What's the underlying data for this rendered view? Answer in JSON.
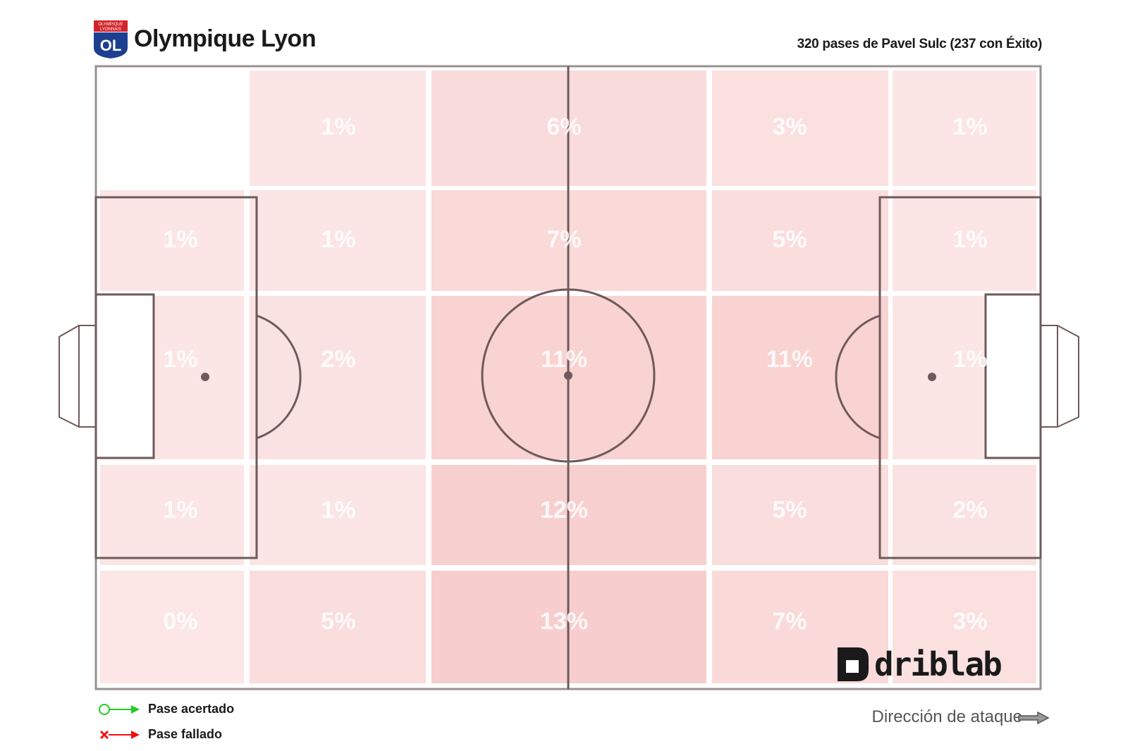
{
  "header": {
    "team_name": "Olympique Lyon",
    "subtitle": "320 pases de Pavel Sulc (237 con Éxito)",
    "badge_text_top": "OLYMPIQUE",
    "badge_text_bottom": "LYONNAIS",
    "badge_letters": "OL"
  },
  "legend": {
    "success_label": "Pase acertado",
    "fail_label": "Pase fallado",
    "success_color": "#22cc22",
    "fail_color": "#ee1111"
  },
  "direction": {
    "label": "Dirección de ataque"
  },
  "brand": {
    "name": "driblab"
  },
  "colors": {
    "cell_base": "#f2a0a0",
    "pitch_line": "#6e5a5a",
    "label": "#ffffff"
  },
  "chart_data": {
    "type": "heatmap",
    "description_units": "percent of passes per pitch zone",
    "columns": 5,
    "rows": 5,
    "cells": [
      [
        "",
        "1%",
        "6%",
        "3%",
        "1%"
      ],
      [
        "1%",
        "1%",
        "7%",
        "5%",
        "1%"
      ],
      [
        "1%",
        "2%",
        "11%",
        "11%",
        "1%"
      ],
      [
        "1%",
        "1%",
        "12%",
        "5%",
        "2%"
      ],
      [
        "0%",
        "5%",
        "13%",
        "7%",
        "3%"
      ]
    ],
    "values": [
      [
        null,
        1,
        6,
        3,
        1
      ],
      [
        1,
        1,
        7,
        5,
        1
      ],
      [
        1,
        2,
        11,
        11,
        1
      ],
      [
        1,
        1,
        12,
        5,
        2
      ],
      [
        0,
        5,
        13,
        7,
        3
      ]
    ],
    "max_value": 13
  }
}
